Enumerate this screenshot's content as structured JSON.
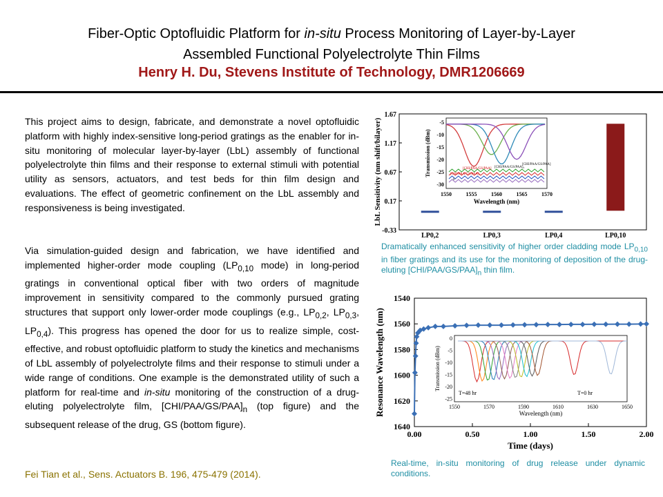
{
  "title": {
    "line1_pre": "Fiber-Optic Optofluidic Platform for ",
    "line1_em": "in-situ",
    "line1_post": " Process Monitoring of Layer-by-Layer",
    "line2": "Assembled Functional Polyelectrolyte Thin Films"
  },
  "author": "Henry H. Du, Stevens Institute of Technology, DMR1206669",
  "paragraph1": "This project aims to design, fabricate, and demonstrate a novel optofluidic platform with highly index-sensitive long-period gratings as the enabler for in-situ monitoring of molecular layer-by-layer (LbL) assembly of functional polyelectrolyte thin films and their response to external stimuli with potential utility as sensors, actuators, and test beds for thin film design and evaluations. The effect of geometric confinement on the LbL assembly and responsiveness is being investigated.",
  "paragraph2": {
    "t1": "Via simulation-guided design and fabrication, we have identified and implemented higher-order mode coupling (LP",
    "s1": "0,10",
    "t2": " mode) in long-period gratings in conventional optical fiber with two orders of magnitude improvement in sensitivity compared to the commonly pursued grating structures that support only lower-order mode couplings (e.g., LP",
    "s2": "0,2",
    "t3": ", LP",
    "s3": "0,3",
    "t4": ", LP",
    "s4": "0,4",
    "t5": "). This progress has opened the door for us to realize simple, cost-effective, and robust optofluidic platform to study the kinetics and mechanisms of LbL assembly of polyelectrolyte films and their response to stimuli under a wide range of conditions. One example is the demonstrated utility of such a platform for real-time and ",
    "em": "in-situ",
    "t6": " monitoring of the construction of a drug-eluting polyelectrolyte film, [CHI/PAA/GS/PAA]",
    "s5": "n",
    "t7": " (top figure) and the subsequent release of the drug, GS (bottom figure)."
  },
  "citation": "Fei Tian et al., Sens. Actuators B. 196, 475-479 (2014).",
  "caption_top": {
    "t1": "Dramatically enhanced sensitivity of higher order cladding mode LP",
    "s1": "0,10",
    "t2": " in fiber gratings and its use for the monitoring of deposition of the drug-eluting [CHI/PAA/GS/PAA]",
    "s2": "n",
    "t3": " thin film."
  },
  "caption_bottom": "Real-time, in-situ monitoring of drug release under dynamic conditions.",
  "colors": {
    "author": "#a01818",
    "caption": "#1e8ea3",
    "citation": "#8a7200",
    "bar_main": "#8b1a1a",
    "bar_small": "#2f4f9a",
    "series": "#3a6fb5"
  },
  "chart_data": [
    {
      "type": "bar",
      "categories": [
        "LP0,2",
        "LP0,3",
        "LP0,4",
        "LP0,10"
      ],
      "values": [
        -0.01,
        -0.02,
        -0.02,
        1.5
      ],
      "ylabel": "LbL Sensitivity (nm shift/bilayer)",
      "yticks": [
        "-0.33",
        "0.17",
        "0.67",
        "1.17",
        "1.67"
      ],
      "ylim": [
        -0.33,
        1.67
      ],
      "inset": {
        "type": "line",
        "xlabel": "Wavelength (nm)",
        "ylabel": "Transmission (dBm)",
        "xticks": [
          "1550",
          "1555",
          "1560",
          "1565",
          "1570"
        ],
        "yticks": [
          "-5",
          "-10",
          "-15",
          "-20",
          "-25",
          "-30"
        ],
        "labels": [
          "[CHI/PAA/GS/PAA]₁",
          "[CHI/PAA/GS/PAA]₅",
          "0",
          "[CHI/PAA/GS/PAA]",
          "[CHI/PAA/GS/PAA]"
        ],
        "dip_centers": [
          1555.5,
          1559,
          1561,
          1564
        ],
        "dip_depths": [
          -22,
          -17,
          -21,
          -19
        ]
      }
    },
    {
      "type": "line",
      "xlabel": "Time (days)",
      "ylabel": "Resonance Wavelength (nm)",
      "xticks": [
        "0.00",
        "0.50",
        "1.00",
        "1.50",
        "2.00"
      ],
      "yticks": [
        "1540",
        "1560",
        "1580",
        "1600",
        "1620",
        "1640"
      ],
      "xlim": [
        0,
        2
      ],
      "ylim": [
        1640,
        1540
      ],
      "x": [
        0.0,
        0.005,
        0.01,
        0.015,
        0.02,
        0.03,
        0.05,
        0.08,
        0.12,
        0.18,
        0.25,
        0.35,
        0.45,
        0.55,
        0.65,
        0.75,
        0.85,
        0.95,
        1.05,
        1.15,
        1.25,
        1.35,
        1.45,
        1.55,
        1.65,
        1.75,
        1.85,
        1.95,
        2.0
      ],
      "y": [
        1630,
        1598,
        1585,
        1575,
        1570,
        1567,
        1565,
        1564,
        1563,
        1562,
        1562,
        1561.5,
        1561.2,
        1561,
        1561,
        1561,
        1560.8,
        1560.7,
        1560.6,
        1560.5,
        1560.5,
        1560.4,
        1560.4,
        1560.3,
        1560.3,
        1560.2,
        1560.2,
        1560.1,
        1560
      ],
      "inset": {
        "type": "line",
        "xlabel": "Wavelength (nm)",
        "ylabel": "Transmission (dBm)",
        "xticks": [
          "1550",
          "1570",
          "1590",
          "1610",
          "1630",
          "1650"
        ],
        "yticks": [
          "0",
          "-5",
          "-10",
          "-15",
          "-20",
          "-25"
        ],
        "labels": [
          "T=48 hr",
          "T=0 hr"
        ]
      }
    }
  ]
}
